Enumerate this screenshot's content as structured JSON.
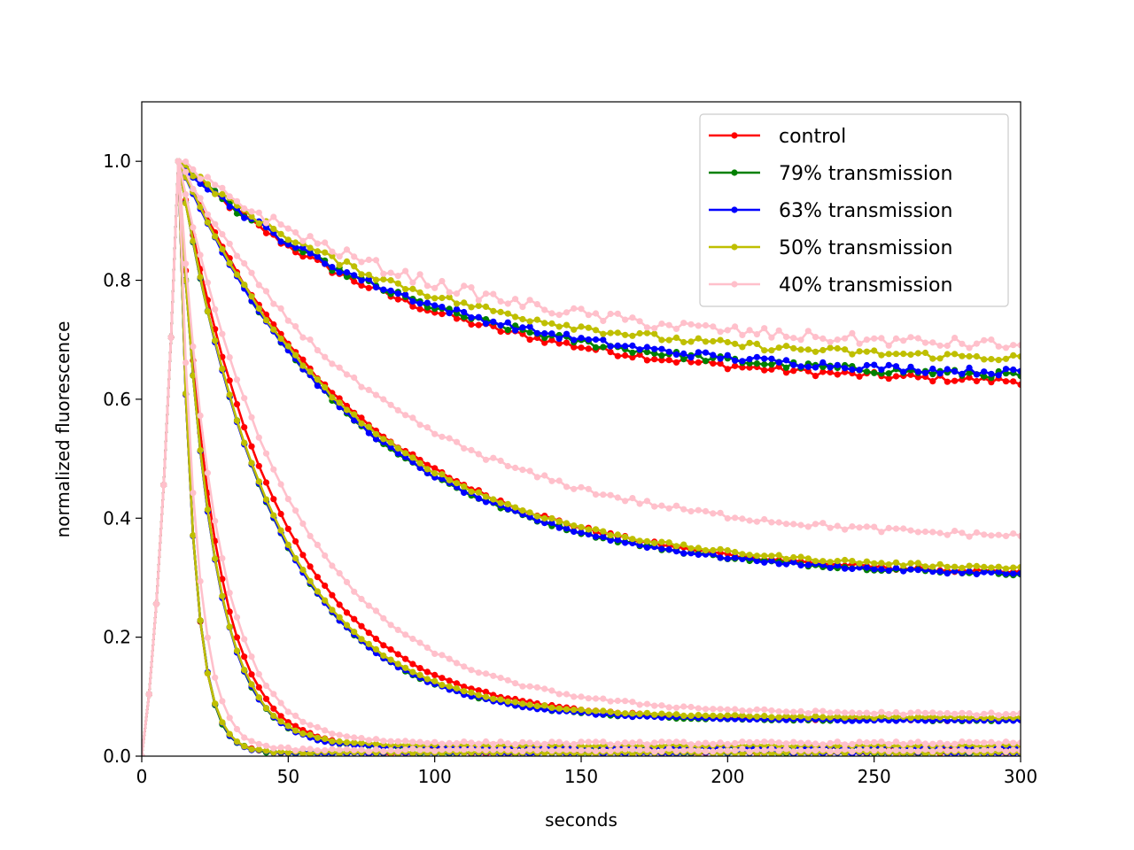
{
  "chart_data": {
    "type": "line",
    "title": "",
    "xlabel": "seconds",
    "ylabel": "normalized fluorescence",
    "xlim": [
      0,
      300
    ],
    "ylim": [
      0,
      1.1
    ],
    "xticks": [
      0,
      50,
      100,
      150,
      200,
      250,
      300
    ],
    "yticks": [
      0.0,
      0.2,
      0.4,
      0.6,
      0.8,
      1.0
    ],
    "xtick_labels": [
      "0",
      "50",
      "100",
      "150",
      "200",
      "250",
      "300"
    ],
    "ytick_labels": [
      "0.0",
      "0.2",
      "0.4",
      "0.6",
      "0.8",
      "1.0"
    ],
    "grid": false,
    "legend_position": "top-right",
    "sampling_interval_s": 2.5,
    "peak_time_s": 12.5,
    "series": [
      {
        "name": "control",
        "color": "#ff0000",
        "curves": [
          {
            "decay_to": 0.62,
            "tau_s": 80
          },
          {
            "decay_to": 0.3,
            "tau_s": 65
          },
          {
            "decay_to": 0.06,
            "tau_s": 35
          },
          {
            "decay_to": 0.015,
            "tau_s": 12
          },
          {
            "decay_to": 0.005,
            "tau_s": 5
          }
        ]
      },
      {
        "name": "79% transmission",
        "color": "#008000",
        "curves": [
          {
            "decay_to": 0.63,
            "tau_s": 80
          },
          {
            "decay_to": 0.3,
            "tau_s": 62
          },
          {
            "decay_to": 0.06,
            "tau_s": 32
          },
          {
            "decay_to": 0.015,
            "tau_s": 11
          },
          {
            "decay_to": 0.005,
            "tau_s": 5
          }
        ]
      },
      {
        "name": "63% transmission",
        "color": "#0000ff",
        "curves": [
          {
            "decay_to": 0.635,
            "tau_s": 80
          },
          {
            "decay_to": 0.3,
            "tau_s": 62
          },
          {
            "decay_to": 0.06,
            "tau_s": 32
          },
          {
            "decay_to": 0.015,
            "tau_s": 11
          },
          {
            "decay_to": 0.005,
            "tau_s": 5
          }
        ]
      },
      {
        "name": "50% transmission",
        "color": "#bfbf00",
        "curves": [
          {
            "decay_to": 0.66,
            "tau_s": 80
          },
          {
            "decay_to": 0.31,
            "tau_s": 62
          },
          {
            "decay_to": 0.065,
            "tau_s": 32
          },
          {
            "decay_to": 0.018,
            "tau_s": 11
          },
          {
            "decay_to": 0.006,
            "tau_s": 5
          }
        ]
      },
      {
        "name": "40% transmission",
        "color": "#ffc0cb",
        "curves": [
          {
            "decay_to": 0.68,
            "tau_s": 85
          },
          {
            "decay_to": 0.36,
            "tau_s": 70
          },
          {
            "decay_to": 0.07,
            "tau_s": 40
          },
          {
            "decay_to": 0.022,
            "tau_s": 13
          },
          {
            "decay_to": 0.01,
            "tau_s": 6
          }
        ]
      }
    ]
  }
}
